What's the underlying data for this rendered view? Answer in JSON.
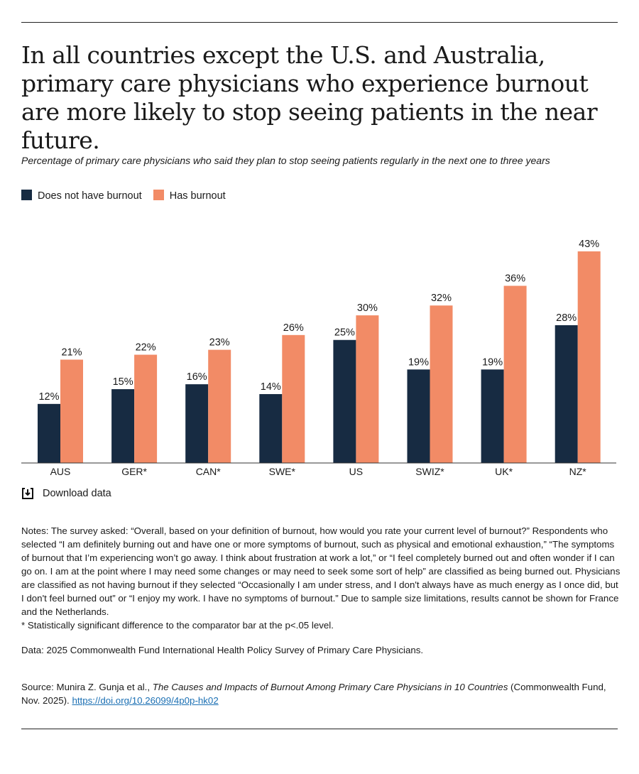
{
  "title": "In all countries except the U.S. and Australia, primary care physicians who experience burnout are more likely to stop seeing patients in the near future.",
  "subtitle": "Percentage of primary care physicians who said they plan to stop seeing patients regularly in the next one to three years",
  "download_label": "Download data",
  "notes": "Notes: The survey asked: “Overall, based on your definition of burnout, how would you rate your current level of burnout?” Respondents who selected “I am definitely burning out and have one or more symptoms of burnout, such as physical and emotional exhaustion,” “The symptoms of burnout that I’m experiencing won’t go away. I think about frustration at work a lot,” or “I feel completely burned out and often wonder if I can go on. I am at the point where I may need some changes or may need to seek some sort of help” are classified as being burned out. Physicians are classified as not having burnout if they selected “Occasionally I am under stress, and I don't always have as much energy as I once did, but I don't feel burned out” or “I enjoy my work. I have no symptoms of burnout.” Due to sample size limitations, results cannot be shown for France and the Netherlands.",
  "significance_note": "* Statistically significant difference to the comparator bar at the p<.05 level.",
  "data_note": "Data: 2025 Commonwealth Fund International Health Policy Survey of Primary Care Physicians.",
  "source": {
    "prefix": "Source: Munira Z. Gunja et al., ",
    "title": "The Causes and Impacts of Burnout Among Primary Care Physicians in 10 Countries",
    "suffix": " (Commonwealth Fund, Nov. 2025). ",
    "link": "https://doi.org/10.26099/4p0p-hk02"
  },
  "chart_data": {
    "type": "bar",
    "categories": [
      "AUS",
      "GER*",
      "CAN*",
      "SWE*",
      "US",
      "SWIZ*",
      "UK*",
      "NZ*"
    ],
    "series": [
      {
        "name": "Does not have burnout",
        "color": "#172b42",
        "values": [
          12,
          15,
          16,
          14,
          25,
          19,
          19,
          28
        ]
      },
      {
        "name": "Has burnout",
        "color": "#f28b66",
        "values": [
          21,
          22,
          23,
          26,
          30,
          32,
          36,
          43
        ]
      }
    ],
    "value_suffix": "%",
    "ylim": [
      0,
      43
    ],
    "grid": false,
    "legend": "top-left"
  }
}
